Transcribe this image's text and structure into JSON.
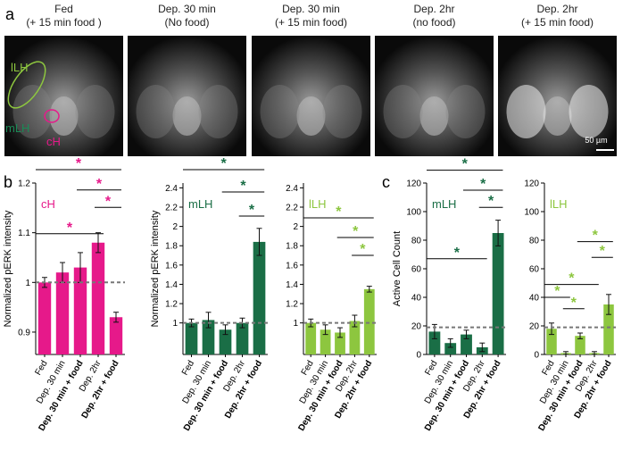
{
  "panel_labels": [
    "a",
    "b",
    "c"
  ],
  "images": [
    {
      "lines": [
        "Fed",
        "(+ 15 min food )"
      ]
    },
    {
      "lines": [
        "Dep. 30 min",
        "(No food)"
      ]
    },
    {
      "lines": [
        "Dep. 30 min",
        "(+ 15 min food)"
      ]
    },
    {
      "lines": [
        "Dep. 2hr",
        "(no food)"
      ]
    },
    {
      "lines": [
        "Dep. 2hr",
        "(+ 15 min food)"
      ]
    }
  ],
  "image_annotations": {
    "lLH": "lLH",
    "mLH": "mLH",
    "cH": "cH",
    "scale_bar": "50 µm"
  },
  "chart_data": [
    {
      "type": "bar",
      "title": "cH",
      "ylabel": "Normalized pERK intensity",
      "categories": [
        "Fed",
        "Dep. 30 min",
        "Dep. 30 min + food",
        "Dep. 2hr",
        "Dep. 2hr + food"
      ],
      "bold": [
        false,
        false,
        true,
        false,
        true
      ],
      "values": [
        1.0,
        1.02,
        1.03,
        1.08,
        0.93
      ],
      "errors": [
        0.01,
        0.02,
        0.03,
        0.02,
        0.01
      ],
      "color": "#e6198a",
      "ylim": [
        0.855,
        1.2
      ],
      "yticks": [
        0.9,
        1,
        1.1,
        1.2
      ],
      "reference_line": 1,
      "annotations": [
        {
          "from": 0,
          "to": 4,
          "y": 1.227,
          "text": "*"
        },
        {
          "from": 2,
          "to": 4,
          "y": 1.186,
          "text": "*"
        },
        {
          "from": 3,
          "to": 4,
          "y": 1.151,
          "text": "*"
        },
        {
          "from": 0,
          "to": 3,
          "y": 1.098,
          "text": "*"
        }
      ]
    },
    {
      "type": "bar",
      "title": "mLH",
      "ylabel": "Normalized pERK intensity",
      "categories": [
        "Fed",
        "Dep. 30 min",
        "Dep. 30 min + food",
        "Dep. 2hr",
        "Dep. 2hr + food"
      ],
      "bold": [
        false,
        false,
        true,
        false,
        true
      ],
      "values": [
        1.0,
        1.03,
        0.93,
        1.0,
        1.84
      ],
      "errors": [
        0.04,
        0.08,
        0.05,
        0.05,
        0.14
      ],
      "color": "#1a6e46",
      "ylim": [
        0.673,
        2.45
      ],
      "yticks": [
        1,
        1.2,
        1.4,
        1.6,
        1.8,
        2,
        2.2,
        2.4
      ],
      "reference_line": 1,
      "annotations": [
        {
          "from": 0,
          "to": 4,
          "y": 2.589,
          "text": "*"
        },
        {
          "from": 2,
          "to": 4,
          "y": 2.357,
          "text": "*"
        },
        {
          "from": 3,
          "to": 4,
          "y": 2.107,
          "text": "*"
        }
      ]
    },
    {
      "type": "bar",
      "title": "lLH",
      "categories": [
        "Fed",
        "Dep. 30 min",
        "Dep. 30 min + food",
        "Dep. 2hr",
        "Dep. 2hr + food"
      ],
      "bold": [
        false,
        false,
        true,
        false,
        true
      ],
      "values": [
        1.0,
        0.93,
        0.9,
        1.02,
        1.35
      ],
      "errors": [
        0.04,
        0.05,
        0.05,
        0.06,
        0.03
      ],
      "color": "#8dc63f",
      "ylim": [
        0.673,
        2.45
      ],
      "yticks": [
        1,
        1.2,
        1.4,
        1.6,
        1.8,
        2,
        2.2,
        2.4
      ],
      "reference_line": 1,
      "annotations": [
        {
          "from": 0,
          "to": 4,
          "y": 2.089,
          "text": "*"
        },
        {
          "from": 2,
          "to": 4,
          "y": 1.885,
          "text": "*"
        },
        {
          "from": 3,
          "to": 4,
          "y": 1.7,
          "text": "*"
        }
      ]
    },
    {
      "type": "bar",
      "title": "mLH",
      "ylabel": "Active Cell Count",
      "categories": [
        "Fed",
        "Dep. 30 min",
        "Dep. 30 min + food",
        "Dep. 2hr",
        "Dep. 2hr + food"
      ],
      "bold": [
        false,
        false,
        true,
        false,
        true
      ],
      "values": [
        16,
        8,
        14,
        5,
        85
      ],
      "errors": [
        5,
        3,
        3,
        3,
        9
      ],
      "color": "#1a6e46",
      "ylim": [
        0,
        120
      ],
      "yticks": [
        0,
        20,
        40,
        60,
        80,
        100,
        120
      ],
      "reference_line": 19,
      "annotations": [
        {
          "from": 0,
          "to": 4,
          "y": 129,
          "text": "*"
        },
        {
          "from": 2,
          "to": 4,
          "y": 115,
          "text": "*"
        },
        {
          "from": 3,
          "to": 4,
          "y": 103,
          "text": "*"
        },
        {
          "from": 0,
          "to": 3,
          "y": 67,
          "text": "*"
        }
      ]
    },
    {
      "type": "bar",
      "title": "lLH",
      "categories": [
        "Fed",
        "Dep. 30 min",
        "Dep. 30 min + food",
        "Dep. 2hr",
        "Dep. 2hr + food"
      ],
      "bold": [
        false,
        false,
        true,
        false,
        true
      ],
      "values": [
        18,
        1,
        13,
        1,
        35
      ],
      "errors": [
        4,
        1,
        2,
        1,
        7
      ],
      "color": "#8dc63f",
      "ylim": [
        0,
        120
      ],
      "yticks": [
        0,
        20,
        40,
        60,
        80,
        100,
        120
      ],
      "reference_line": 19,
      "annotations": [
        {
          "from": 2,
          "to": 4,
          "y": 79,
          "text": "*"
        },
        {
          "from": 3,
          "to": 4,
          "y": 68,
          "text": "*"
        },
        {
          "from": 0,
          "to": 3,
          "y": 49,
          "text": "*"
        },
        {
          "from": 0,
          "to": 1,
          "y": 40,
          "text": "*"
        },
        {
          "from": 1,
          "to": 2,
          "y": 32,
          "text": "*"
        }
      ]
    }
  ]
}
